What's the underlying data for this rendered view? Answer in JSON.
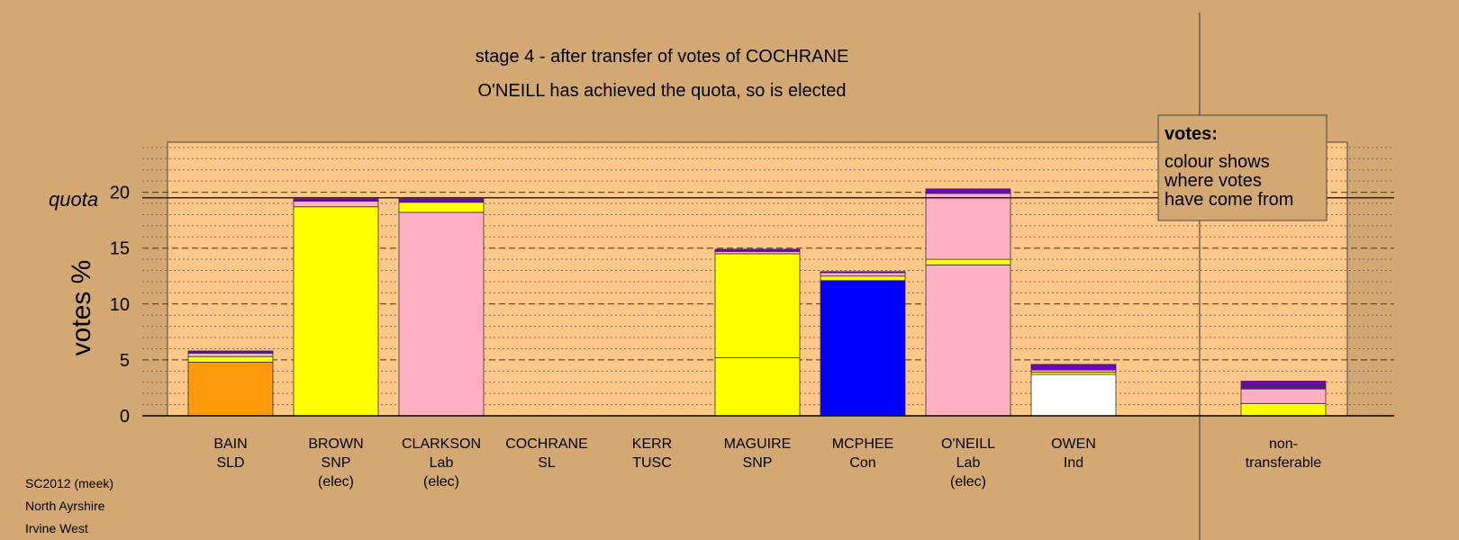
{
  "title_line1": "stage 4 - after transfer of votes of COCHRANE",
  "title_line2": "O'NEILL has achieved the quota, so is elected",
  "footer": [
    "SC2012 (meek)",
    "North Ayrshire",
    "Irvine West"
  ],
  "legend": {
    "title": "votes:",
    "lines": [
      "colour shows",
      "where votes",
      "have come from"
    ]
  },
  "chart_data": {
    "type": "bar",
    "stacked": true,
    "ylabel": "votes %",
    "ylim": [
      0,
      24
    ],
    "yticks": [
      0,
      5,
      10,
      15,
      20
    ],
    "quota": {
      "label": "quota",
      "value": 19.5
    },
    "grid": "dotted minor lines every 1%, dashed major lines every 5%",
    "colors": {
      "SLD": "#ff9a0a",
      "SNP": "#ffff00",
      "Lab": "#ffafc4",
      "SL": "#ff3030",
      "TUSC": "#8b0000",
      "Con": "#0000ff",
      "Ind": "#ffffff",
      "misc": "#7000c8"
    },
    "categories": [
      {
        "lines": [
          "BAIN",
          "SLD"
        ],
        "segments": [
          [
            4.8,
            "SLD"
          ],
          [
            0.5,
            "SNP"
          ],
          [
            0.3,
            "Lab"
          ],
          [
            0.2,
            "misc"
          ]
        ]
      },
      {
        "lines": [
          "BROWN",
          "SNP",
          "(elec)"
        ],
        "segments": [
          [
            18.7,
            "SNP"
          ],
          [
            0.5,
            "Lab"
          ],
          [
            0.2,
            "misc"
          ]
        ]
      },
      {
        "lines": [
          "CLARKSON",
          "Lab",
          "(elec)"
        ],
        "segments": [
          [
            18.2,
            "Lab"
          ],
          [
            0.9,
            "SNP"
          ],
          [
            0.3,
            "misc"
          ]
        ]
      },
      {
        "lines": [
          "COCHRANE",
          "SL"
        ],
        "segments": []
      },
      {
        "lines": [
          "KERR",
          "TUSC"
        ],
        "segments": []
      },
      {
        "lines": [
          "MAGUIRE",
          "SNP"
        ],
        "segments": [
          [
            5.2,
            "SNP"
          ],
          [
            9.3,
            "SNP"
          ],
          [
            0.2,
            "Lab"
          ],
          [
            0.2,
            "misc"
          ]
        ]
      },
      {
        "lines": [
          "MCPHEE",
          "Con"
        ],
        "segments": [
          [
            12.1,
            "Con"
          ],
          [
            0.4,
            "SNP"
          ],
          [
            0.3,
            "Lab"
          ],
          [
            0.1,
            "misc"
          ]
        ]
      },
      {
        "lines": [
          "O'NEILL",
          "Lab",
          "(elec)"
        ],
        "segments": [
          [
            13.5,
            "Lab"
          ],
          [
            0.5,
            "SNP"
          ],
          [
            5.9,
            "Lab"
          ],
          [
            0.4,
            "misc"
          ]
        ]
      },
      {
        "lines": [
          "OWEN",
          "Ind"
        ],
        "segments": [
          [
            3.7,
            "Ind"
          ],
          [
            0.2,
            "SNP"
          ],
          [
            0.2,
            "Lab"
          ],
          [
            0.5,
            "misc"
          ]
        ]
      },
      {
        "lines": [
          "non-",
          "transferable"
        ],
        "segments": [
          [
            1.1,
            "SNP"
          ],
          [
            1.3,
            "Lab"
          ],
          [
            0.3,
            "misc"
          ],
          [
            0.4,
            "misc"
          ]
        ]
      }
    ]
  }
}
